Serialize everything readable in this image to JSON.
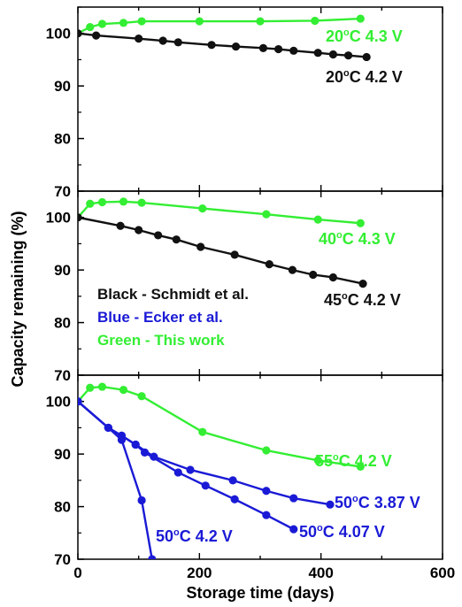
{
  "chart_data": {
    "type": "line",
    "xlabel": "Storage time (days)",
    "ylabel": "Capacity remaining (%)",
    "xlim": [
      0,
      600
    ],
    "x_ticks": [
      "0",
      "200",
      "400",
      "600"
    ],
    "legend": [
      {
        "text": "Black - Schmidt et al.",
        "color": "#111111"
      },
      {
        "text": "Blue - Ecker et al.",
        "color": "#1a1ad6"
      },
      {
        "text": "Green - This work",
        "color": "#33ee33"
      }
    ],
    "colors": {
      "black": "#111111",
      "blue": "#1a1ad6",
      "green": "#33ee33"
    },
    "panels": [
      {
        "ylim": [
          70,
          105
        ],
        "y_ticks": [
          "100",
          "90",
          "80",
          "70"
        ],
        "series": [
          {
            "color": "green",
            "label": "20°C 4.3 V",
            "x": [
              0,
              20,
              40,
              75,
              105,
              200,
              300,
              390,
              465
            ],
            "y": [
              100,
              101.2,
              101.8,
              102.0,
              102.3,
              102.3,
              102.3,
              102.4,
              102.8
            ]
          },
          {
            "color": "black",
            "label": "20°C 4.2 V",
            "x": [
              0,
              30,
              100,
              140,
              165,
              220,
              260,
              305,
              330,
              355,
              395,
              420,
              445,
              475
            ],
            "y": [
              100,
              99.6,
              99.0,
              98.6,
              98.3,
              97.8,
              97.5,
              97.2,
              97.0,
              96.7,
              96.3,
              96.0,
              95.8,
              95.5
            ]
          }
        ]
      },
      {
        "ylim": [
          70,
          105
        ],
        "y_ticks": [
          "100",
          "90",
          "80",
          "70"
        ],
        "series": [
          {
            "color": "green",
            "label": "40°C 4.3 V",
            "x": [
              0,
              20,
              40,
              75,
              105,
              205,
              310,
              395,
              465
            ],
            "y": [
              100,
              102.6,
              102.9,
              103.0,
              102.8,
              101.7,
              100.6,
              99.6,
              98.9
            ]
          },
          {
            "color": "black",
            "label": "45°C 4.2 V",
            "x": [
              0,
              70,
              100,
              132,
              162,
              202,
              258,
              315,
              353,
              387,
              420,
              469
            ],
            "y": [
              100,
              98.4,
              97.6,
              96.6,
              95.8,
              94.4,
              92.9,
              91.1,
              90.0,
              89.1,
              88.6,
              87.4
            ]
          }
        ]
      },
      {
        "ylim": [
          70,
          105
        ],
        "y_ticks": [
          "100",
          "90",
          "80",
          "70"
        ],
        "series": [
          {
            "color": "green",
            "label": "55°C 4.2 V",
            "x": [
              0,
              20,
              40,
              75,
              105,
              205,
              310,
              395,
              465
            ],
            "y": [
              100,
              102.6,
              102.8,
              102.2,
              101.0,
              94.2,
              90.7,
              88.8,
              87.6
            ]
          },
          {
            "color": "blue",
            "label": "50°C 3.87 V",
            "x": [
              0,
              50,
              72,
              95,
              125,
              185,
              255,
              310,
              355,
              415
            ],
            "y": [
              100,
              95.0,
              93.5,
              91.8,
              89.5,
              87.0,
              85.0,
              83.0,
              81.6,
              80.4
            ]
          },
          {
            "color": "blue",
            "label": "50°C 4.07 V",
            "x": [
              0,
              50,
              72,
              95,
              110,
              165,
              210,
              258,
              310,
              355
            ],
            "y": [
              100,
              95.0,
              93.5,
              91.8,
              90.3,
              86.5,
              84.0,
              81.4,
              78.4,
              75.7
            ]
          },
          {
            "color": "blue",
            "label": "50°C 4.2 V",
            "x": [
              0,
              50,
              72,
              105,
              122
            ],
            "y": [
              100,
              95.0,
              92.7,
              81.2,
              70.0
            ]
          }
        ]
      }
    ]
  }
}
